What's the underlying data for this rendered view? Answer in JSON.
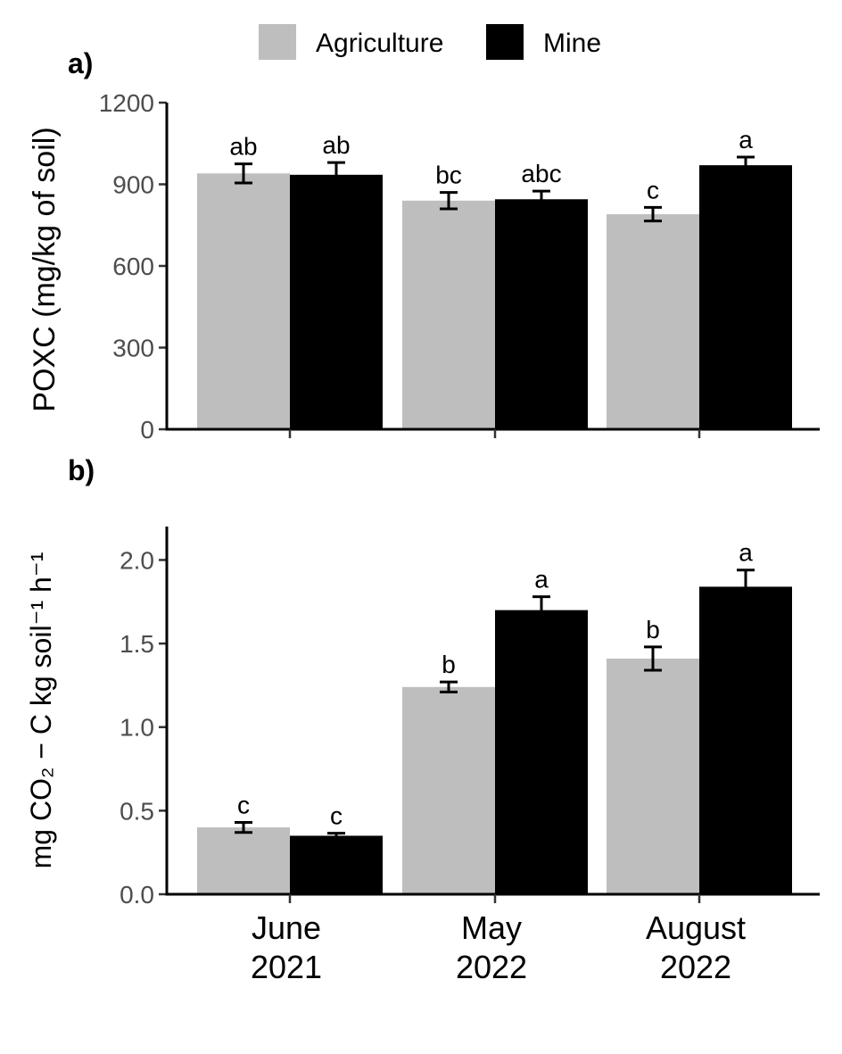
{
  "legend": {
    "entries": [
      {
        "name": "Agriculture",
        "color": "#bebebe"
      },
      {
        "name": "Mine",
        "color": "#000000"
      }
    ],
    "placement": "top"
  },
  "chart_data": [
    {
      "type": "bar",
      "panel_label": "a)",
      "title": "",
      "ylabel": "POXC (mg/kg of soil)",
      "xlabel": "",
      "categories": [
        "June 2021",
        "May 2022",
        "August 2022"
      ],
      "ylim": [
        0,
        1200
      ],
      "yticks": [
        "0",
        "300",
        "600",
        "900",
        "1200"
      ],
      "ytick_values": [
        0,
        300,
        600,
        900,
        1200
      ],
      "series": [
        {
          "name": "Agriculture",
          "color": "#bebebe",
          "values": [
            940,
            840,
            790
          ],
          "errors": [
            35,
            30,
            25
          ],
          "letters": [
            "ab",
            "bc",
            "c"
          ]
        },
        {
          "name": "Mine",
          "color": "#000000",
          "values": [
            935,
            845,
            970
          ],
          "errors": [
            45,
            30,
            30
          ],
          "letters": [
            "ab",
            "abc",
            "a"
          ]
        }
      ],
      "grid": false
    },
    {
      "type": "bar",
      "panel_label": "b)",
      "title": "",
      "ylabel": "mg CO₂ − C kg soil⁻¹ h⁻¹",
      "xlabel": "",
      "categories": [
        "June 2021",
        "May 2022",
        "August 2022"
      ],
      "category_lines": [
        [
          "June",
          "2021"
        ],
        [
          "May",
          "2022"
        ],
        [
          "August",
          "2022"
        ]
      ],
      "ylim": [
        0,
        2.2
      ],
      "yticks": [
        "0.0",
        "0.5",
        "1.0",
        "1.5",
        "2.0"
      ],
      "ytick_values": [
        0,
        0.5,
        1.0,
        1.5,
        2.0
      ],
      "series": [
        {
          "name": "Agriculture",
          "color": "#bebebe",
          "values": [
            0.4,
            1.24,
            1.41
          ],
          "errors": [
            0.03,
            0.03,
            0.07
          ],
          "letters": [
            "c",
            "b",
            "b"
          ]
        },
        {
          "name": "Mine",
          "color": "#000000",
          "values": [
            0.35,
            1.7,
            1.84
          ],
          "errors": [
            0.015,
            0.08,
            0.1
          ],
          "letters": [
            "c",
            "a",
            "a"
          ]
        }
      ],
      "grid": false
    }
  ]
}
